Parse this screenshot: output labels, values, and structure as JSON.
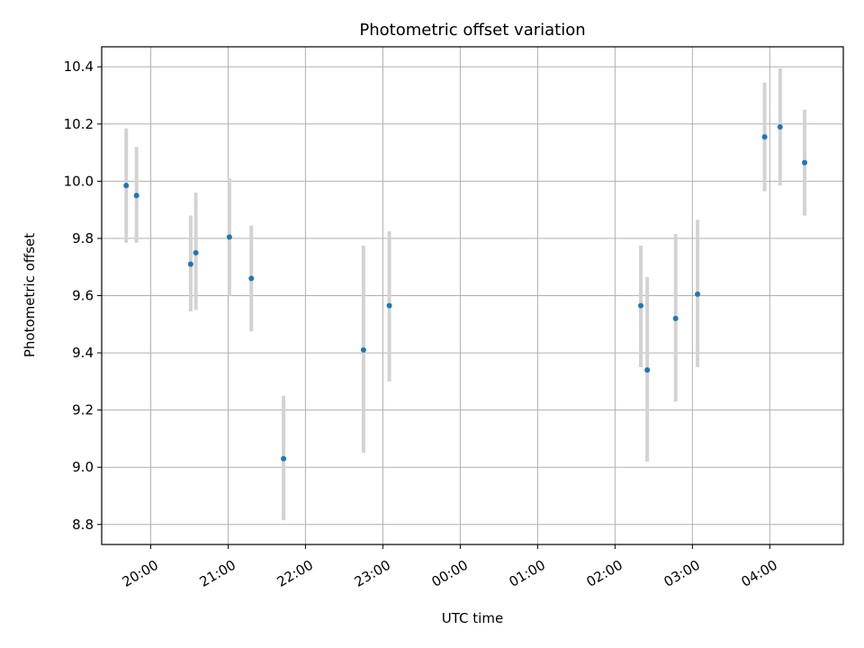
{
  "chart_data": {
    "type": "scatter",
    "title": "Photometric offset variation",
    "xlabel": "UTC time",
    "ylabel": "Photometric offset",
    "x_ticks": [
      "20:00",
      "21:00",
      "22:00",
      "23:00",
      "00:00",
      "01:00",
      "02:00",
      "03:00",
      "04:00"
    ],
    "y_ticks": [
      "8.8",
      "9.0",
      "9.2",
      "9.4",
      "9.6",
      "9.8",
      "10.0",
      "10.2",
      "10.4"
    ],
    "xlim": [
      "19:22",
      "04:57"
    ],
    "ylim": [
      8.73,
      10.47
    ],
    "grid": true,
    "point_color": "#1f77b4",
    "errorbar_color": "#d3d3d3",
    "points": [
      {
        "x": "19:41",
        "y": 9.985,
        "ylow": 9.785,
        "yhigh": 10.185
      },
      {
        "x": "19:49",
        "y": 9.95,
        "ylow": 9.785,
        "yhigh": 10.12
      },
      {
        "x": "20:31",
        "y": 9.71,
        "ylow": 9.545,
        "yhigh": 9.88
      },
      {
        "x": "20:35",
        "y": 9.75,
        "ylow": 9.55,
        "yhigh": 9.96
      },
      {
        "x": "21:01",
        "y": 9.805,
        "ylow": 9.6,
        "yhigh": 10.01
      },
      {
        "x": "21:18",
        "y": 9.66,
        "ylow": 9.475,
        "yhigh": 9.845
      },
      {
        "x": "21:43",
        "y": 9.03,
        "ylow": 8.815,
        "yhigh": 9.25
      },
      {
        "x": "22:45",
        "y": 9.41,
        "ylow": 9.05,
        "yhigh": 9.775
      },
      {
        "x": "23:05",
        "y": 9.565,
        "ylow": 9.3,
        "yhigh": 9.825
      },
      {
        "x": "02:20",
        "y": 9.565,
        "ylow": 9.35,
        "yhigh": 9.775
      },
      {
        "x": "02:25",
        "y": 9.34,
        "ylow": 9.02,
        "yhigh": 9.665
      },
      {
        "x": "02:47",
        "y": 9.52,
        "ylow": 9.23,
        "yhigh": 9.815
      },
      {
        "x": "03:04",
        "y": 9.605,
        "ylow": 9.35,
        "yhigh": 9.865
      },
      {
        "x": "03:56",
        "y": 10.155,
        "ylow": 9.965,
        "yhigh": 10.345
      },
      {
        "x": "04:08",
        "y": 10.19,
        "ylow": 9.985,
        "yhigh": 10.395
      },
      {
        "x": "04:27",
        "y": 10.065,
        "ylow": 9.88,
        "yhigh": 10.25
      }
    ]
  }
}
